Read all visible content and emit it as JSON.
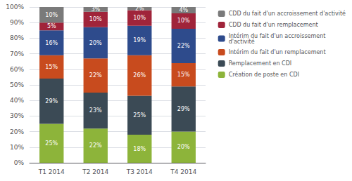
{
  "chart_data": {
    "type": "bar",
    "stacked": true,
    "data_labels": true,
    "grid": true,
    "legend": "right",
    "categories": [
      "T1 2014",
      "T2 2014",
      "T3 2014",
      "T4 2014"
    ],
    "series": [
      {
        "name": "Création de poste en CDI",
        "color": "#8DB43A",
        "values": [
          25,
          22,
          18,
          20
        ],
        "value_labels": [
          "25%",
          "22%",
          "18%",
          "20%"
        ]
      },
      {
        "name": "Remplacement en CDI",
        "color": "#3B4A55",
        "values": [
          29,
          23,
          25,
          29
        ],
        "value_labels": [
          "29%",
          "23%",
          "25%",
          "29%"
        ]
      },
      {
        "name": "Intérim du fait d'un remplacement",
        "color": "#C84B1E",
        "values": [
          15,
          22,
          26,
          15
        ],
        "value_labels": [
          "15%",
          "22%",
          "26%",
          "15%"
        ]
      },
      {
        "name": "Intérim du fait d'un accroissement\nd'activité",
        "color": "#2E4B8C",
        "values": [
          16,
          20,
          19,
          22
        ],
        "value_labels": [
          "16%",
          "20%",
          "19%",
          "22%"
        ]
      },
      {
        "name": "CDD du fait d'un remplacement",
        "color": "#A0243A",
        "values": [
          5,
          10,
          10,
          10
        ],
        "value_labels": [
          "5%",
          "10%",
          "10%",
          "10%"
        ]
      },
      {
        "name": "CDD du fait d'un accroissement d'activité",
        "color": "#7A7A7A",
        "values": [
          10,
          3,
          2,
          4
        ],
        "value_labels": [
          "10%",
          "3%",
          "2%",
          "4%"
        ]
      }
    ],
    "ylim": [
      0,
      100
    ],
    "yticks": [
      {
        "value": 0,
        "label": "0%"
      },
      {
        "value": 10,
        "label": "10%"
      },
      {
        "value": 20,
        "label": "20%"
      },
      {
        "value": 30,
        "label": "30%"
      },
      {
        "value": 40,
        "label": "40%"
      },
      {
        "value": 50,
        "label": "50%"
      },
      {
        "value": 60,
        "label": "60%"
      },
      {
        "value": 70,
        "label": "70%"
      },
      {
        "value": 80,
        "label": "80%"
      },
      {
        "value": 90,
        "label": "90%"
      },
      {
        "value": 100,
        "label": "100%"
      }
    ]
  }
}
